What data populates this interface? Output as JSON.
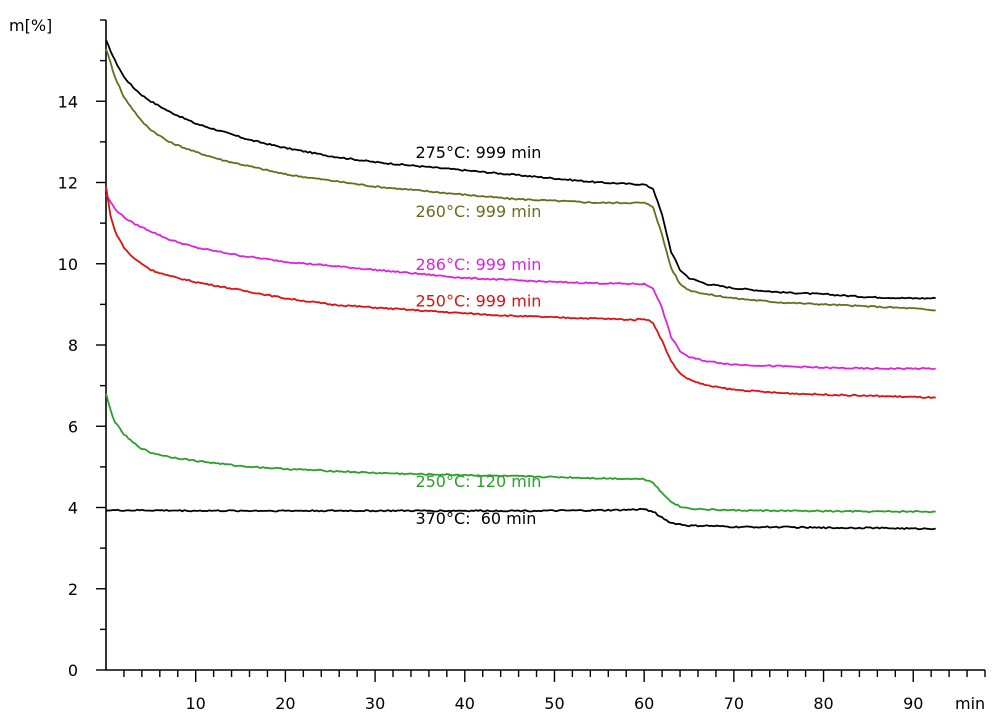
{
  "chart_data": {
    "type": "line",
    "title": "",
    "ylabel": "m[%]",
    "xlabel": "min",
    "xlim": [
      0,
      98
    ],
    "ylim": [
      0,
      16
    ],
    "x_ticks": [
      10,
      20,
      30,
      40,
      50,
      60,
      70,
      80,
      90
    ],
    "y_ticks": [
      0,
      2,
      4,
      6,
      8,
      10,
      12,
      14
    ],
    "x_minor_step": 2,
    "y_minor_step": 1,
    "grid": false,
    "series": [
      {
        "name": "275°C: 999 min",
        "color": "#000000",
        "label_at": [
          34.5,
          12.6
        ],
        "points": [
          [
            0,
            15.5
          ],
          [
            1,
            15.0
          ],
          [
            2,
            14.6
          ],
          [
            3,
            14.35
          ],
          [
            4,
            14.15
          ],
          [
            5,
            14.0
          ],
          [
            7,
            13.75
          ],
          [
            10,
            13.45
          ],
          [
            13,
            13.25
          ],
          [
            16,
            13.05
          ],
          [
            20,
            12.85
          ],
          [
            25,
            12.65
          ],
          [
            30,
            12.5
          ],
          [
            35,
            12.4
          ],
          [
            40,
            12.3
          ],
          [
            45,
            12.2
          ],
          [
            50,
            12.1
          ],
          [
            55,
            12.0
          ],
          [
            58,
            11.97
          ],
          [
            60,
            11.95
          ],
          [
            61,
            11.85
          ],
          [
            62,
            11.2
          ],
          [
            63,
            10.3
          ],
          [
            64,
            9.85
          ],
          [
            65,
            9.65
          ],
          [
            67,
            9.5
          ],
          [
            70,
            9.4
          ],
          [
            75,
            9.3
          ],
          [
            80,
            9.25
          ],
          [
            85,
            9.18
          ],
          [
            90,
            9.15
          ],
          [
            92.5,
            9.15
          ]
        ]
      },
      {
        "name": "260°C: 999 min",
        "color": "#6b6b1e",
        "label_at": [
          34.5,
          11.15
        ],
        "points": [
          [
            0,
            15.3
          ],
          [
            1,
            14.6
          ],
          [
            2,
            14.1
          ],
          [
            3,
            13.8
          ],
          [
            4,
            13.5
          ],
          [
            5,
            13.3
          ],
          [
            7,
            13.0
          ],
          [
            10,
            12.75
          ],
          [
            13,
            12.55
          ],
          [
            16,
            12.4
          ],
          [
            20,
            12.2
          ],
          [
            25,
            12.05
          ],
          [
            30,
            11.9
          ],
          [
            35,
            11.8
          ],
          [
            40,
            11.7
          ],
          [
            45,
            11.6
          ],
          [
            50,
            11.55
          ],
          [
            55,
            11.5
          ],
          [
            60,
            11.5
          ],
          [
            61,
            11.4
          ],
          [
            62,
            10.7
          ],
          [
            63,
            9.9
          ],
          [
            64,
            9.5
          ],
          [
            65,
            9.35
          ],
          [
            67,
            9.25
          ],
          [
            70,
            9.15
          ],
          [
            75,
            9.05
          ],
          [
            80,
            9.0
          ],
          [
            85,
            8.95
          ],
          [
            90,
            8.9
          ],
          [
            92.5,
            8.85
          ]
        ]
      },
      {
        "name": "286°C: 999 min",
        "color": "#dd22dd",
        "label_at": [
          34.5,
          9.85
        ],
        "points": [
          [
            0,
            11.7
          ],
          [
            1,
            11.35
          ],
          [
            2,
            11.15
          ],
          [
            3,
            11.0
          ],
          [
            5,
            10.8
          ],
          [
            7,
            10.6
          ],
          [
            10,
            10.4
          ],
          [
            15,
            10.2
          ],
          [
            20,
            10.05
          ],
          [
            25,
            9.95
          ],
          [
            30,
            9.85
          ],
          [
            35,
            9.75
          ],
          [
            40,
            9.65
          ],
          [
            45,
            9.6
          ],
          [
            50,
            9.55
          ],
          [
            55,
            9.52
          ],
          [
            60,
            9.5
          ],
          [
            61,
            9.4
          ],
          [
            62,
            8.9
          ],
          [
            63,
            8.2
          ],
          [
            64,
            7.85
          ],
          [
            65,
            7.7
          ],
          [
            67,
            7.6
          ],
          [
            70,
            7.52
          ],
          [
            75,
            7.48
          ],
          [
            80,
            7.44
          ],
          [
            85,
            7.42
          ],
          [
            90,
            7.42
          ],
          [
            92.5,
            7.42
          ]
        ]
      },
      {
        "name": "250°C: 999 min",
        "color": "#dd1111",
        "label_at": [
          34.5,
          8.95
        ],
        "points": [
          [
            0,
            11.9
          ],
          [
            0.5,
            11.2
          ],
          [
            1,
            10.8
          ],
          [
            2,
            10.4
          ],
          [
            3,
            10.15
          ],
          [
            4,
            10.0
          ],
          [
            5,
            9.85
          ],
          [
            7,
            9.7
          ],
          [
            10,
            9.55
          ],
          [
            15,
            9.35
          ],
          [
            20,
            9.15
          ],
          [
            25,
            9.0
          ],
          [
            30,
            8.92
          ],
          [
            35,
            8.85
          ],
          [
            40,
            8.78
          ],
          [
            45,
            8.72
          ],
          [
            50,
            8.68
          ],
          [
            55,
            8.65
          ],
          [
            59,
            8.62
          ],
          [
            60,
            8.65
          ],
          [
            61,
            8.55
          ],
          [
            62,
            8.1
          ],
          [
            63,
            7.6
          ],
          [
            64,
            7.3
          ],
          [
            65,
            7.15
          ],
          [
            67,
            7.0
          ],
          [
            70,
            6.9
          ],
          [
            75,
            6.82
          ],
          [
            80,
            6.78
          ],
          [
            85,
            6.75
          ],
          [
            90,
            6.72
          ],
          [
            92.5,
            6.7
          ]
        ]
      },
      {
        "name": "250°C: 120 min",
        "color": "#2a9f2a",
        "label_at": [
          34.5,
          4.5
        ],
        "points": [
          [
            0,
            6.8
          ],
          [
            0.5,
            6.4
          ],
          [
            1,
            6.1
          ],
          [
            2,
            5.8
          ],
          [
            3,
            5.6
          ],
          [
            4,
            5.45
          ],
          [
            5,
            5.35
          ],
          [
            7,
            5.25
          ],
          [
            10,
            5.15
          ],
          [
            15,
            5.02
          ],
          [
            20,
            4.95
          ],
          [
            25,
            4.9
          ],
          [
            30,
            4.85
          ],
          [
            35,
            4.82
          ],
          [
            40,
            4.8
          ],
          [
            45,
            4.77
          ],
          [
            50,
            4.75
          ],
          [
            55,
            4.72
          ],
          [
            60,
            4.7
          ],
          [
            61,
            4.62
          ],
          [
            62,
            4.35
          ],
          [
            63,
            4.15
          ],
          [
            64,
            4.02
          ],
          [
            65,
            3.98
          ],
          [
            67,
            3.95
          ],
          [
            70,
            3.93
          ],
          [
            75,
            3.92
          ],
          [
            80,
            3.91
          ],
          [
            85,
            3.9
          ],
          [
            90,
            3.9
          ],
          [
            92.5,
            3.9
          ]
        ]
      },
      {
        "name": "370°C:  60 min",
        "color": "#000000",
        "label_at": [
          34.5,
          3.6
        ],
        "points": [
          [
            0,
            3.93
          ],
          [
            5,
            3.93
          ],
          [
            10,
            3.92
          ],
          [
            20,
            3.92
          ],
          [
            30,
            3.92
          ],
          [
            40,
            3.92
          ],
          [
            50,
            3.92
          ],
          [
            55,
            3.93
          ],
          [
            58,
            3.94
          ],
          [
            60,
            3.96
          ],
          [
            61,
            3.9
          ],
          [
            62,
            3.75
          ],
          [
            63,
            3.62
          ],
          [
            65,
            3.55
          ],
          [
            67,
            3.55
          ],
          [
            70,
            3.52
          ],
          [
            75,
            3.52
          ],
          [
            80,
            3.5
          ],
          [
            85,
            3.5
          ],
          [
            90,
            3.48
          ],
          [
            92.5,
            3.48
          ]
        ]
      }
    ]
  }
}
